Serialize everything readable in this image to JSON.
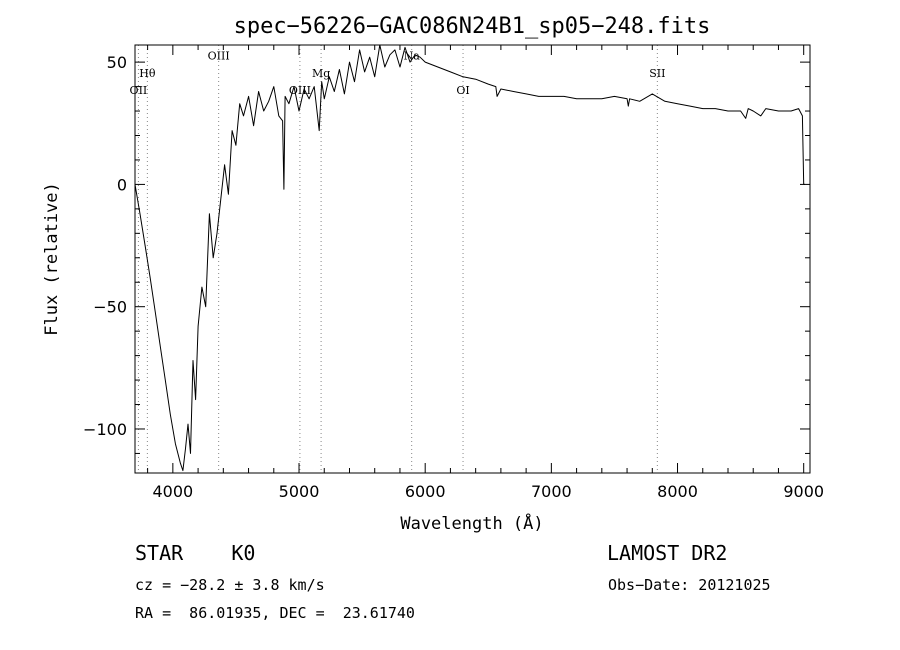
{
  "chart_data": {
    "type": "line",
    "title": "spec−56226−GAC086N24B1_sp05−248.fits",
    "xlabel": "Wavelength (Å)",
    "ylabel": "Flux (relative)",
    "xlim": [
      3700,
      9050
    ],
    "ylim": [
      -118,
      57
    ],
    "xticks": [
      4000,
      5000,
      6000,
      7000,
      8000,
      9000
    ],
    "yticks": [
      -100,
      -50,
      0,
      50
    ],
    "ytick_labels": [
      "−100",
      "−50",
      "0",
      "50"
    ],
    "grid": false,
    "lines": [
      {
        "name": "OII",
        "x": 3727,
        "label_y": 37
      },
      {
        "name": "Hθ",
        "x": 3798,
        "label_y": 44
      },
      {
        "name": "OIII",
        "x": 4363,
        "label_y": 51
      },
      {
        "name": "OIII",
        "x": 5007,
        "label_y": 37
      },
      {
        "name": "Mg",
        "x": 5175,
        "label_y": 44
      },
      {
        "name": "Na",
        "x": 5893,
        "label_y": 51
      },
      {
        "name": "OI",
        "x": 6300,
        "label_y": 37
      },
      {
        "name": "SII",
        "x": 7840,
        "label_y": 44
      }
    ],
    "series": [
      {
        "x": [
          3700,
          3740,
          3780,
          3820,
          3860,
          3900,
          3940,
          3980,
          4020,
          4060,
          4080,
          4100,
          4120,
          4140,
          4160,
          4180,
          4200,
          4230,
          4260,
          4290,
          4320,
          4350,
          4380,
          4410,
          4440,
          4470,
          4500,
          4530,
          4560,
          4600,
          4640,
          4680,
          4720,
          4760,
          4800,
          4840,
          4870,
          4880,
          4890,
          4920,
          4960,
          5000,
          5040,
          5080,
          5120,
          5160,
          5180,
          5200,
          5240,
          5280,
          5320,
          5360,
          5400,
          5440,
          5480,
          5520,
          5560,
          5600,
          5640,
          5680,
          5720,
          5760,
          5800,
          5840,
          5880,
          5920,
          5960,
          6000,
          6100,
          6200,
          6300,
          6400,
          6500,
          6560,
          6570,
          6600,
          6700,
          6800,
          6900,
          7000,
          7100,
          7200,
          7300,
          7400,
          7500,
          7600,
          7610,
          7620,
          7700,
          7800,
          7900,
          8000,
          8100,
          8200,
          8300,
          8400,
          8500,
          8540,
          8560,
          8600,
          8660,
          8700,
          8800,
          8900,
          8960,
          8990,
          9000,
          9010
        ],
        "y": [
          0,
          -12,
          -25,
          -38,
          -52,
          -66,
          -80,
          -94,
          -106,
          -114,
          -117,
          -108,
          -98,
          -110,
          -72,
          -88,
          -58,
          -42,
          -50,
          -12,
          -30,
          -20,
          -6,
          8,
          -4,
          22,
          16,
          33,
          28,
          36,
          24,
          38,
          30,
          34,
          40,
          28,
          26,
          -2,
          36,
          33,
          40,
          30,
          39,
          35,
          40,
          22,
          42,
          35,
          44,
          38,
          47,
          37,
          50,
          42,
          55,
          46,
          52,
          44,
          57,
          48,
          53,
          55,
          48,
          56,
          50,
          53,
          52,
          50,
          48,
          46,
          44,
          43,
          41,
          40,
          36,
          39,
          38,
          37,
          36,
          36,
          36,
          35,
          35,
          35,
          36,
          35,
          32,
          35,
          34,
          37,
          34,
          33,
          32,
          31,
          31,
          30,
          30,
          27,
          31,
          30,
          28,
          31,
          30,
          30,
          31,
          28,
          0,
          0
        ]
      }
    ]
  },
  "info": {
    "class_line": "STAR    K0",
    "survey": "LAMOST DR2",
    "cz_line": "cz = −28.2 ± 3.8 km/s",
    "obs_date": "Obs−Date: 20121025",
    "radec_line": "RA =  86.01935, DEC =  23.61740"
  }
}
